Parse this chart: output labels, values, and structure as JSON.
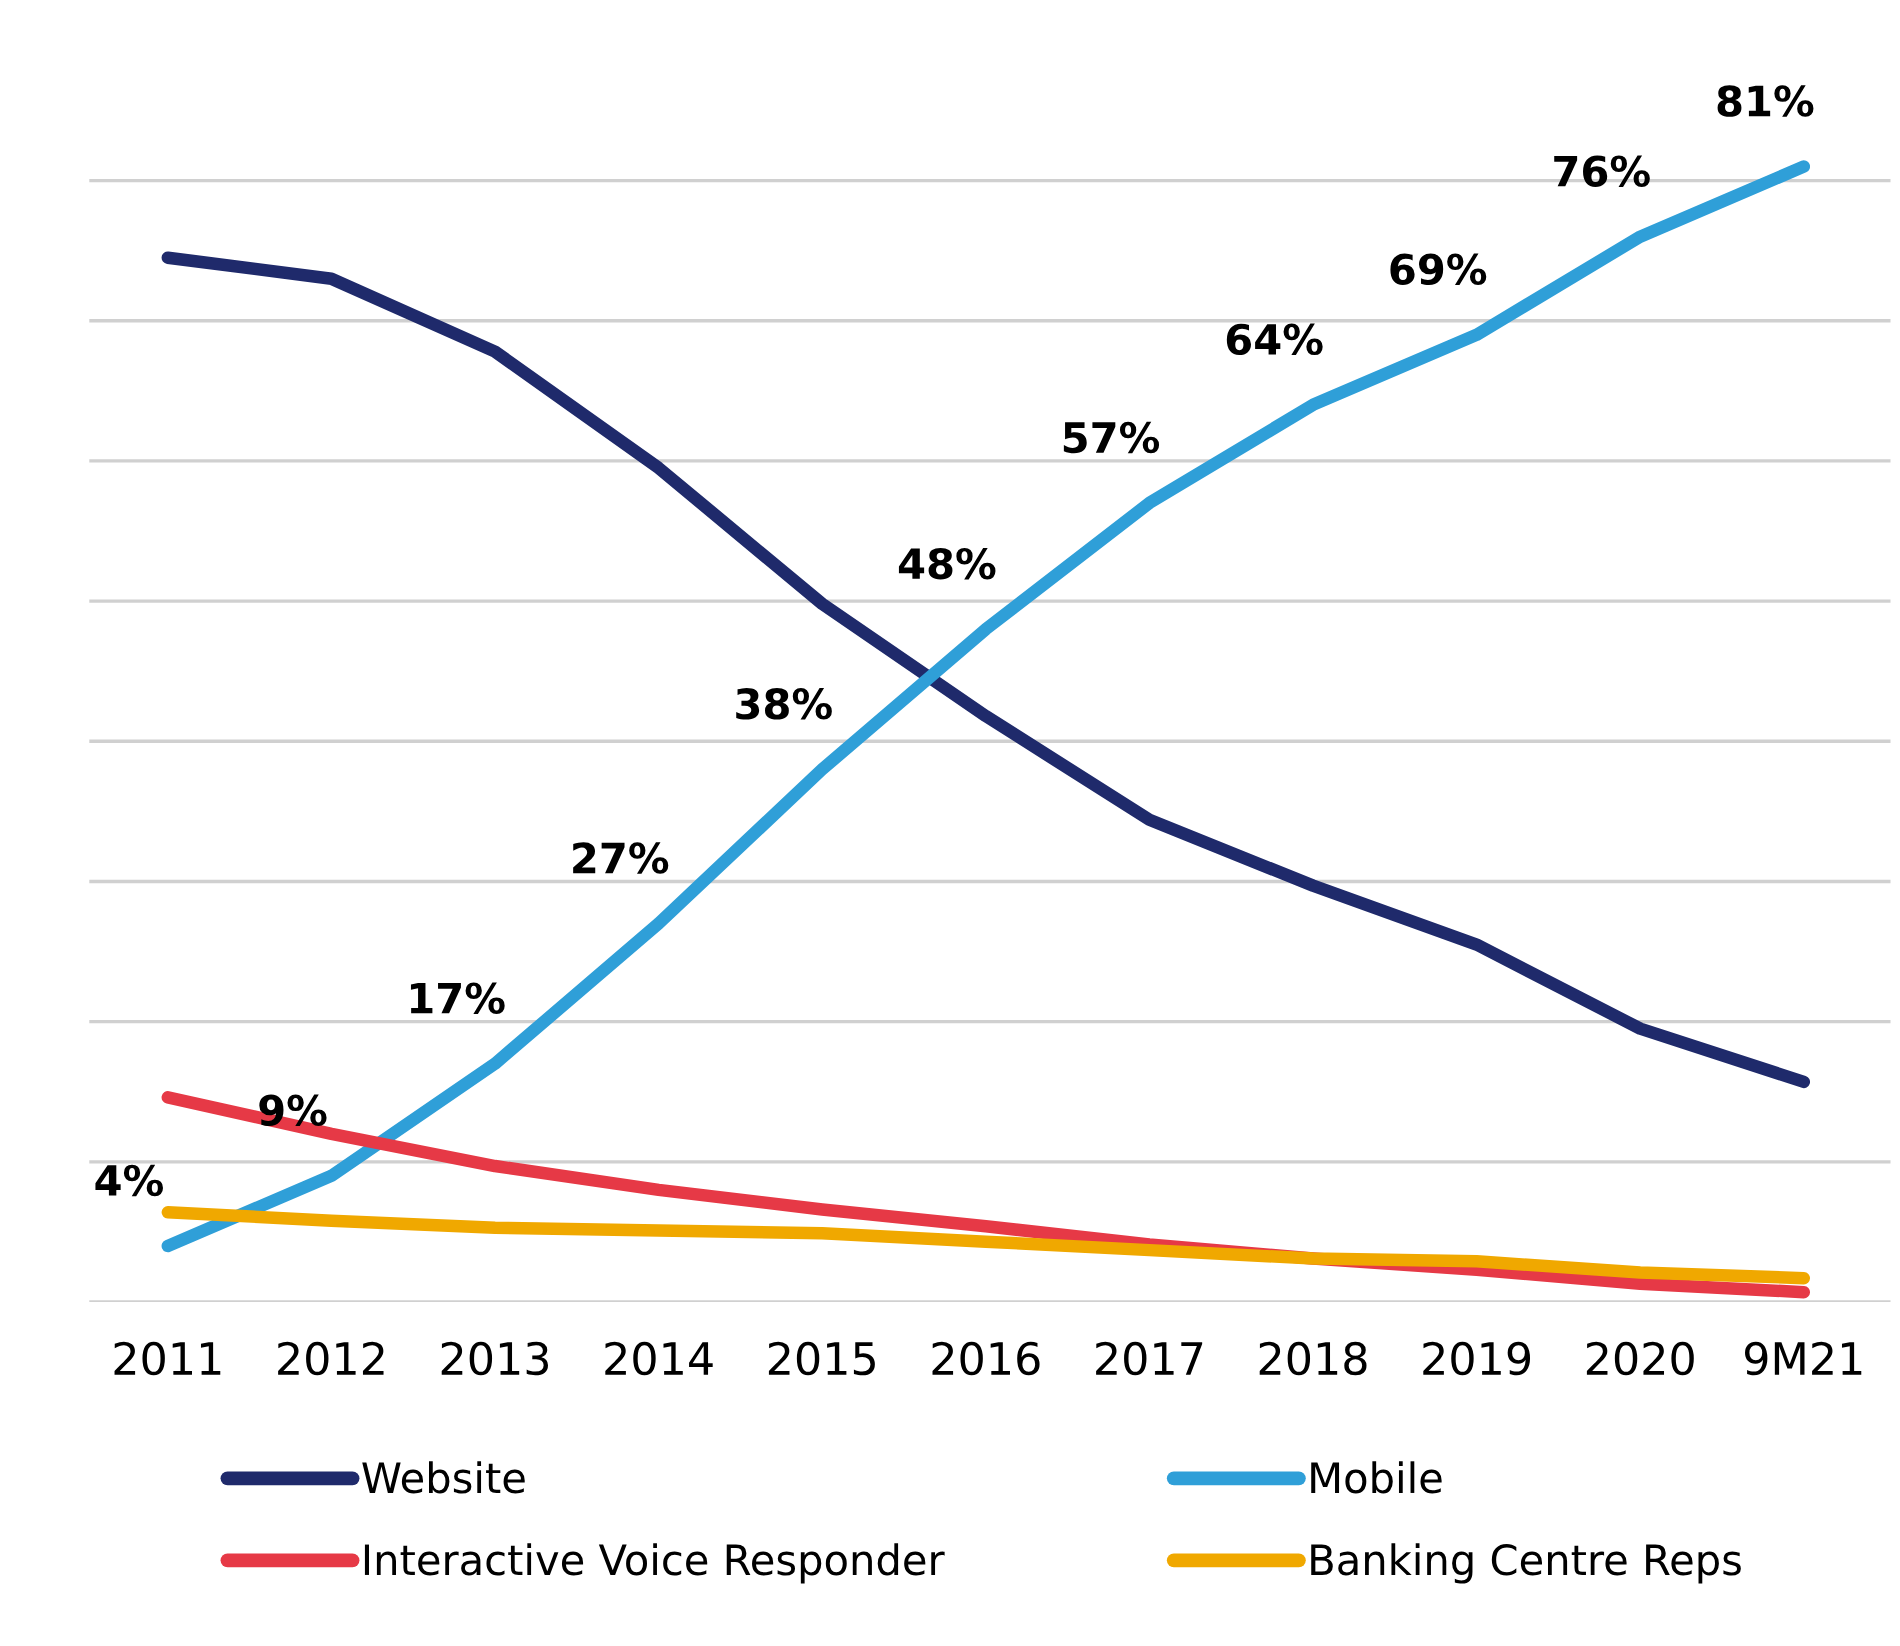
{
  "chart_data": {
    "type": "line",
    "categories": [
      "2011",
      "2012",
      "2013",
      "2014",
      "2015",
      "2016",
      "2017",
      "2018",
      "2019",
      "2020",
      "9M21"
    ],
    "series": [
      {
        "name": "Website",
        "color": "#1f2a6b",
        "values": [
          74.5,
          73,
          67.8,
          59.5,
          49.8,
          41.8,
          34.4,
          29.7,
          25.5,
          19.5,
          15.7
        ]
      },
      {
        "name": "Mobile",
        "color": "#2f9fd8",
        "values": [
          4,
          9,
          17,
          27,
          38,
          48,
          57,
          64,
          69,
          76,
          81
        ],
        "value_labels": [
          "4%",
          "9%",
          "17%",
          "27%",
          "38%",
          "48%",
          "57%",
          "64%",
          "69%",
          "76%",
          "81%"
        ]
      },
      {
        "name": "Interactive Voice Responder",
        "color": "#e63946",
        "values": [
          14.6,
          12,
          9.7,
          8,
          6.6,
          5.4,
          4.1,
          3.1,
          2.3,
          1.3,
          0.7
        ]
      },
      {
        "name": "Banking Centre Reps",
        "color": "#f0a800",
        "values": [
          6.4,
          5.8,
          5.3,
          5.1,
          4.9,
          4.3,
          3.7,
          3.1,
          2.9,
          2.1,
          1.7
        ]
      }
    ],
    "yticks": [
      {
        "value": 0,
        "label": null
      },
      {
        "value": 10,
        "label": null
      },
      {
        "value": 20,
        "label": null
      },
      {
        "value": 30,
        "label": null
      },
      {
        "value": 40,
        "label": null
      },
      {
        "value": 50,
        "label": null
      },
      {
        "value": 60,
        "label": null
      },
      {
        "value": 70,
        "label": null
      },
      {
        "value": 80,
        "label": null
      }
    ],
    "grid": "y",
    "legend": "bottom",
    "marker": "none",
    "line_style": "solid"
  }
}
